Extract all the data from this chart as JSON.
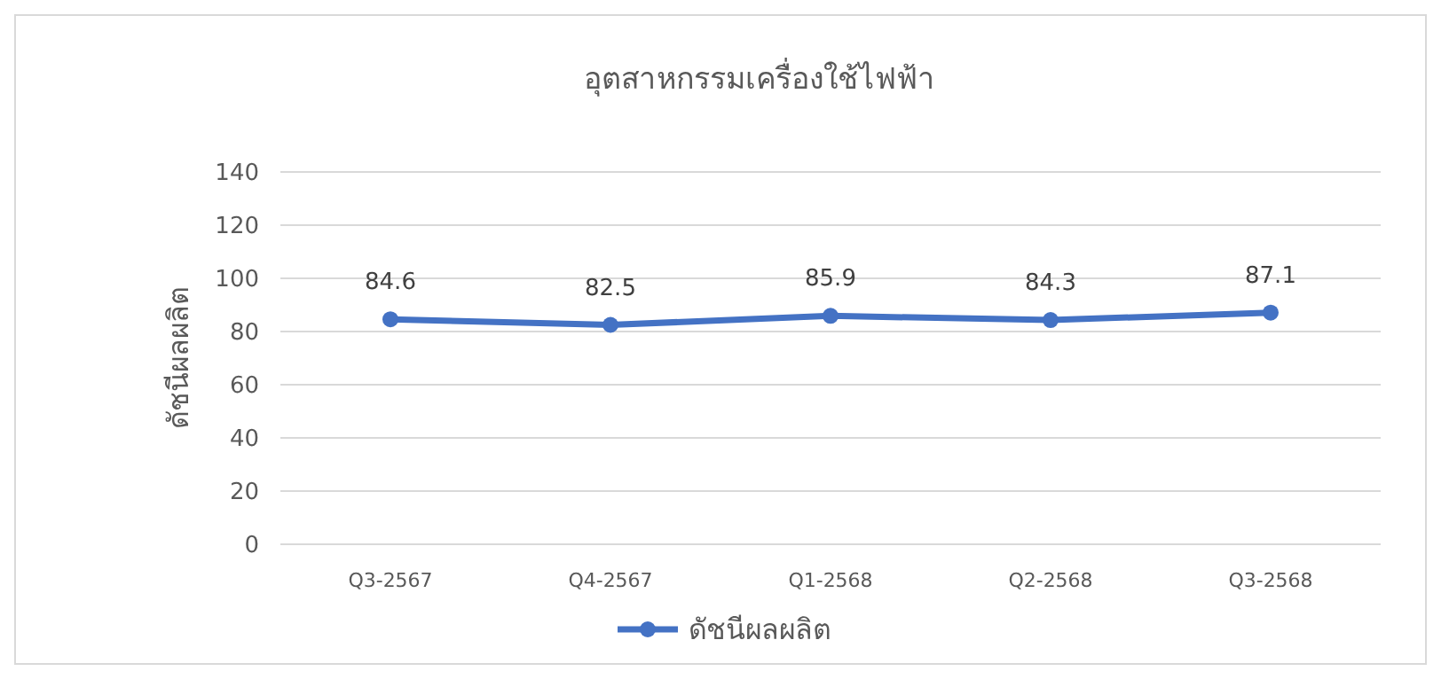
{
  "chart_data": {
    "type": "line",
    "title": "อุตสาหกรรมเครื่องใช้ไฟฟ้า",
    "ylabel": "ดัชนีผลผลิต",
    "categories": [
      "Q3-2567",
      "Q4-2567",
      "Q1-2568",
      "Q2-2568",
      "Q3-2568"
    ],
    "series": [
      {
        "name": "ดัชนีผลผลิต",
        "color": "#4472c4",
        "values": [
          84.6,
          82.5,
          85.9,
          84.3,
          87.1
        ]
      }
    ],
    "ylim": [
      0,
      140
    ],
    "yticks": [
      0,
      20,
      40,
      60,
      80,
      100,
      120,
      140
    ],
    "grid": "y",
    "legend": "bottom",
    "marker": "circle",
    "line_style": "solid",
    "data_labels": true
  }
}
